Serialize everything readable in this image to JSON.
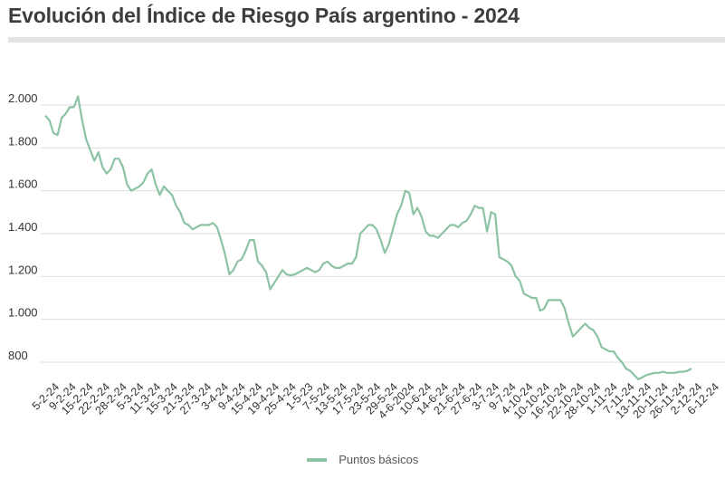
{
  "chart_data": {
    "type": "line",
    "title": "Evolución del Índice de Riesgo País argentino - 2024",
    "yticks": [
      800,
      1000,
      1200,
      1400,
      1600,
      1800,
      2000
    ],
    "ytick_labels": [
      "800",
      "1.000",
      "1.200",
      "1.400",
      "1.600",
      "1.800",
      "2.000"
    ],
    "ylim": [
      700,
      2000
    ],
    "grid": true,
    "legend_position": "bottom",
    "xtick_labels": [
      "5-2-24",
      "9-2-24",
      "15-2-24",
      "22-2-24",
      "28-2-24",
      "5-3-24",
      "11-3-24",
      "15-3-24",
      "21-3-24",
      "27-3-24",
      "3-4-24",
      "9-4-24",
      "15-4-24",
      "19-4-24",
      "25-4-24",
      "1-5-23",
      "7-5-24",
      "13-5-24",
      "17-5-24",
      "23-5-24",
      "29-5-24",
      "4-6-2024",
      "10-6-24",
      "14-6-24",
      "21-6-24",
      "27-6-24",
      "3-7-24",
      "9-7-24",
      "4-10-24",
      "10-10-24",
      "16-10-24",
      "22-10-24",
      "28-10-24",
      "1-11-24",
      "7-11-24",
      "13-11-24",
      "20-11-24",
      "26-11-24",
      "2-12-24",
      "6-12-24"
    ],
    "series": [
      {
        "name": "Puntos básicos",
        "color": "#8cc3a4",
        "values": [
          1950,
          1930,
          1870,
          1860,
          1940,
          1960,
          1990,
          1990,
          2040,
          1930,
          1840,
          1790,
          1740,
          1780,
          1710,
          1680,
          1700,
          1750,
          1750,
          1710,
          1630,
          1600,
          1610,
          1620,
          1640,
          1680,
          1700,
          1630,
          1580,
          1620,
          1600,
          1580,
          1530,
          1500,
          1450,
          1440,
          1420,
          1430,
          1440,
          1440,
          1440,
          1450,
          1430,
          1370,
          1300,
          1210,
          1230,
          1270,
          1280,
          1320,
          1370,
          1370,
          1270,
          1250,
          1220,
          1140,
          1170,
          1200,
          1230,
          1210,
          1205,
          1210,
          1220,
          1230,
          1240,
          1230,
          1220,
          1230,
          1260,
          1270,
          1250,
          1240,
          1240,
          1250,
          1260,
          1260,
          1290,
          1400,
          1420,
          1440,
          1440,
          1420,
          1370,
          1310,
          1350,
          1420,
          1490,
          1530,
          1600,
          1590,
          1490,
          1520,
          1480,
          1410,
          1390,
          1390,
          1380,
          1400,
          1420,
          1440,
          1440,
          1430,
          1450,
          1460,
          1490,
          1530,
          1520,
          1520,
          1410,
          1500,
          1490,
          1290,
          1280,
          1270,
          1250,
          1200,
          1180,
          1120,
          1110,
          1100,
          1100,
          1040,
          1050,
          1090,
          1090,
          1090,
          1090,
          1050,
          980,
          920,
          940,
          960,
          980,
          960,
          950,
          920,
          870,
          860,
          850,
          850,
          820,
          800,
          770,
          760,
          740,
          720,
          730,
          740,
          745,
          750,
          750,
          755,
          750,
          750,
          750,
          755,
          755,
          760,
          770
        ]
      }
    ]
  },
  "legend": {
    "label": "Puntos básicos"
  }
}
